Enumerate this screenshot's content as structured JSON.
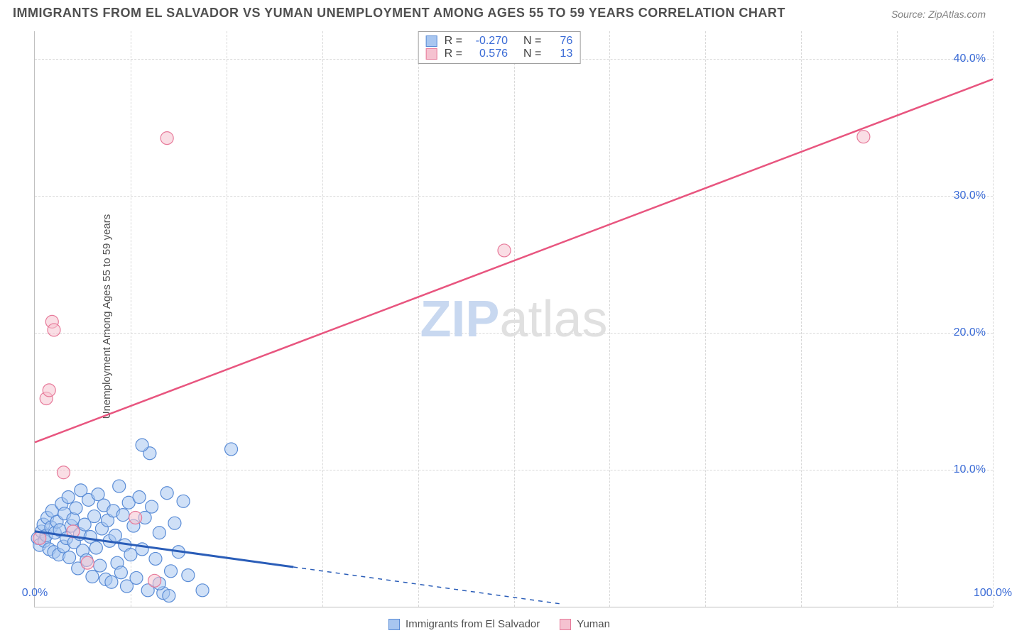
{
  "title": "IMMIGRANTS FROM EL SALVADOR VS YUMAN UNEMPLOYMENT AMONG AGES 55 TO 59 YEARS CORRELATION CHART",
  "source": "Source: ZipAtlas.com",
  "watermark_zip": "ZIP",
  "watermark_atlas": "atlas",
  "y_axis_label": "Unemployment Among Ages 55 to 59 years",
  "chart": {
    "type": "scatter",
    "xlim": [
      0,
      100
    ],
    "ylim": [
      0,
      42
    ],
    "x_ticks": [
      0,
      10,
      20,
      30,
      40,
      50,
      60,
      70,
      80,
      90,
      100
    ],
    "x_tick_labels": {
      "0": "0.0%",
      "100": "100.0%"
    },
    "y_ticks": [
      10,
      20,
      30,
      40
    ],
    "y_tick_labels": {
      "10": "10.0%",
      "20": "20.0%",
      "30": "30.0%",
      "40": "40.0%"
    },
    "background_color": "#ffffff",
    "grid_color": "#d8d8d8",
    "axis_color": "#c0c0c0",
    "tick_label_color": "#3a6bd6",
    "series": [
      {
        "name": "Immigrants from El Salvador",
        "key": "sa",
        "R": "-0.270",
        "N": "76",
        "marker_fill": "#a8c6f0",
        "marker_stroke": "#5a8cd6",
        "marker_opacity": 0.55,
        "marker_radius": 9,
        "line_color": "#2a5db8",
        "line_dash_after": 27,
        "trend": {
          "x1": 0,
          "y1": 5.5,
          "x2": 55,
          "y2": 0.2
        },
        "points": [
          [
            0.3,
            5.0
          ],
          [
            0.5,
            4.5
          ],
          [
            0.7,
            5.5
          ],
          [
            0.9,
            6.0
          ],
          [
            1.0,
            4.8
          ],
          [
            1.2,
            5.2
          ],
          [
            1.3,
            6.5
          ],
          [
            1.5,
            4.2
          ],
          [
            1.7,
            5.8
          ],
          [
            1.8,
            7.0
          ],
          [
            2.0,
            4.0
          ],
          [
            2.1,
            5.4
          ],
          [
            2.3,
            6.2
          ],
          [
            2.5,
            3.8
          ],
          [
            2.6,
            5.6
          ],
          [
            2.8,
            7.5
          ],
          [
            3.0,
            4.4
          ],
          [
            3.1,
            6.8
          ],
          [
            3.3,
            5.0
          ],
          [
            3.5,
            8.0
          ],
          [
            3.6,
            3.6
          ],
          [
            3.8,
            5.9
          ],
          [
            4.0,
            6.4
          ],
          [
            4.1,
            4.7
          ],
          [
            4.3,
            7.2
          ],
          [
            4.5,
            2.8
          ],
          [
            4.7,
            5.3
          ],
          [
            4.8,
            8.5
          ],
          [
            5.0,
            4.1
          ],
          [
            5.2,
            6.0
          ],
          [
            5.4,
            3.4
          ],
          [
            5.6,
            7.8
          ],
          [
            5.8,
            5.1
          ],
          [
            6.0,
            2.2
          ],
          [
            6.2,
            6.6
          ],
          [
            6.4,
            4.3
          ],
          [
            6.6,
            8.2
          ],
          [
            6.8,
            3.0
          ],
          [
            7.0,
            5.7
          ],
          [
            7.2,
            7.4
          ],
          [
            7.4,
            2.0
          ],
          [
            7.6,
            6.3
          ],
          [
            7.8,
            4.8
          ],
          [
            8.0,
            1.8
          ],
          [
            8.2,
            7.0
          ],
          [
            8.4,
            5.2
          ],
          [
            8.6,
            3.2
          ],
          [
            8.8,
            8.8
          ],
          [
            9.0,
            2.5
          ],
          [
            9.2,
            6.7
          ],
          [
            9.4,
            4.5
          ],
          [
            9.6,
            1.5
          ],
          [
            9.8,
            7.6
          ],
          [
            10.0,
            3.8
          ],
          [
            10.3,
            5.9
          ],
          [
            10.6,
            2.1
          ],
          [
            10.9,
            8.0
          ],
          [
            11.2,
            4.2
          ],
          [
            11.5,
            6.5
          ],
          [
            11.8,
            1.2
          ],
          [
            12.2,
            7.3
          ],
          [
            12.6,
            3.5
          ],
          [
            13.0,
            5.4
          ],
          [
            13.4,
            1.0
          ],
          [
            13.8,
            8.3
          ],
          [
            14.2,
            2.6
          ],
          [
            14.6,
            6.1
          ],
          [
            15.0,
            4.0
          ],
          [
            15.5,
            7.7
          ],
          [
            16.0,
            2.3
          ],
          [
            12.0,
            11.2
          ],
          [
            13.0,
            1.7
          ],
          [
            14.0,
            0.8
          ],
          [
            20.5,
            11.5
          ],
          [
            11.2,
            11.8
          ],
          [
            17.5,
            1.2
          ]
        ]
      },
      {
        "name": "Yuman",
        "key": "yu",
        "R": "0.576",
        "N": "13",
        "marker_fill": "#f5c2d0",
        "marker_stroke": "#e77a9a",
        "marker_opacity": 0.55,
        "marker_radius": 9,
        "line_color": "#e8557f",
        "trend": {
          "x1": 0,
          "y1": 12.0,
          "x2": 100,
          "y2": 38.5
        },
        "points": [
          [
            0.5,
            5.0
          ],
          [
            1.2,
            15.2
          ],
          [
            1.5,
            15.8
          ],
          [
            1.8,
            20.8
          ],
          [
            2.0,
            20.2
          ],
          [
            3.0,
            9.8
          ],
          [
            5.5,
            3.2
          ],
          [
            10.5,
            6.5
          ],
          [
            12.5,
            1.9
          ],
          [
            13.8,
            34.2
          ],
          [
            49.0,
            26.0
          ],
          [
            86.5,
            34.3
          ],
          [
            4.0,
            5.5
          ]
        ]
      }
    ]
  },
  "stats_labels": {
    "R": "R =",
    "N": "N ="
  }
}
